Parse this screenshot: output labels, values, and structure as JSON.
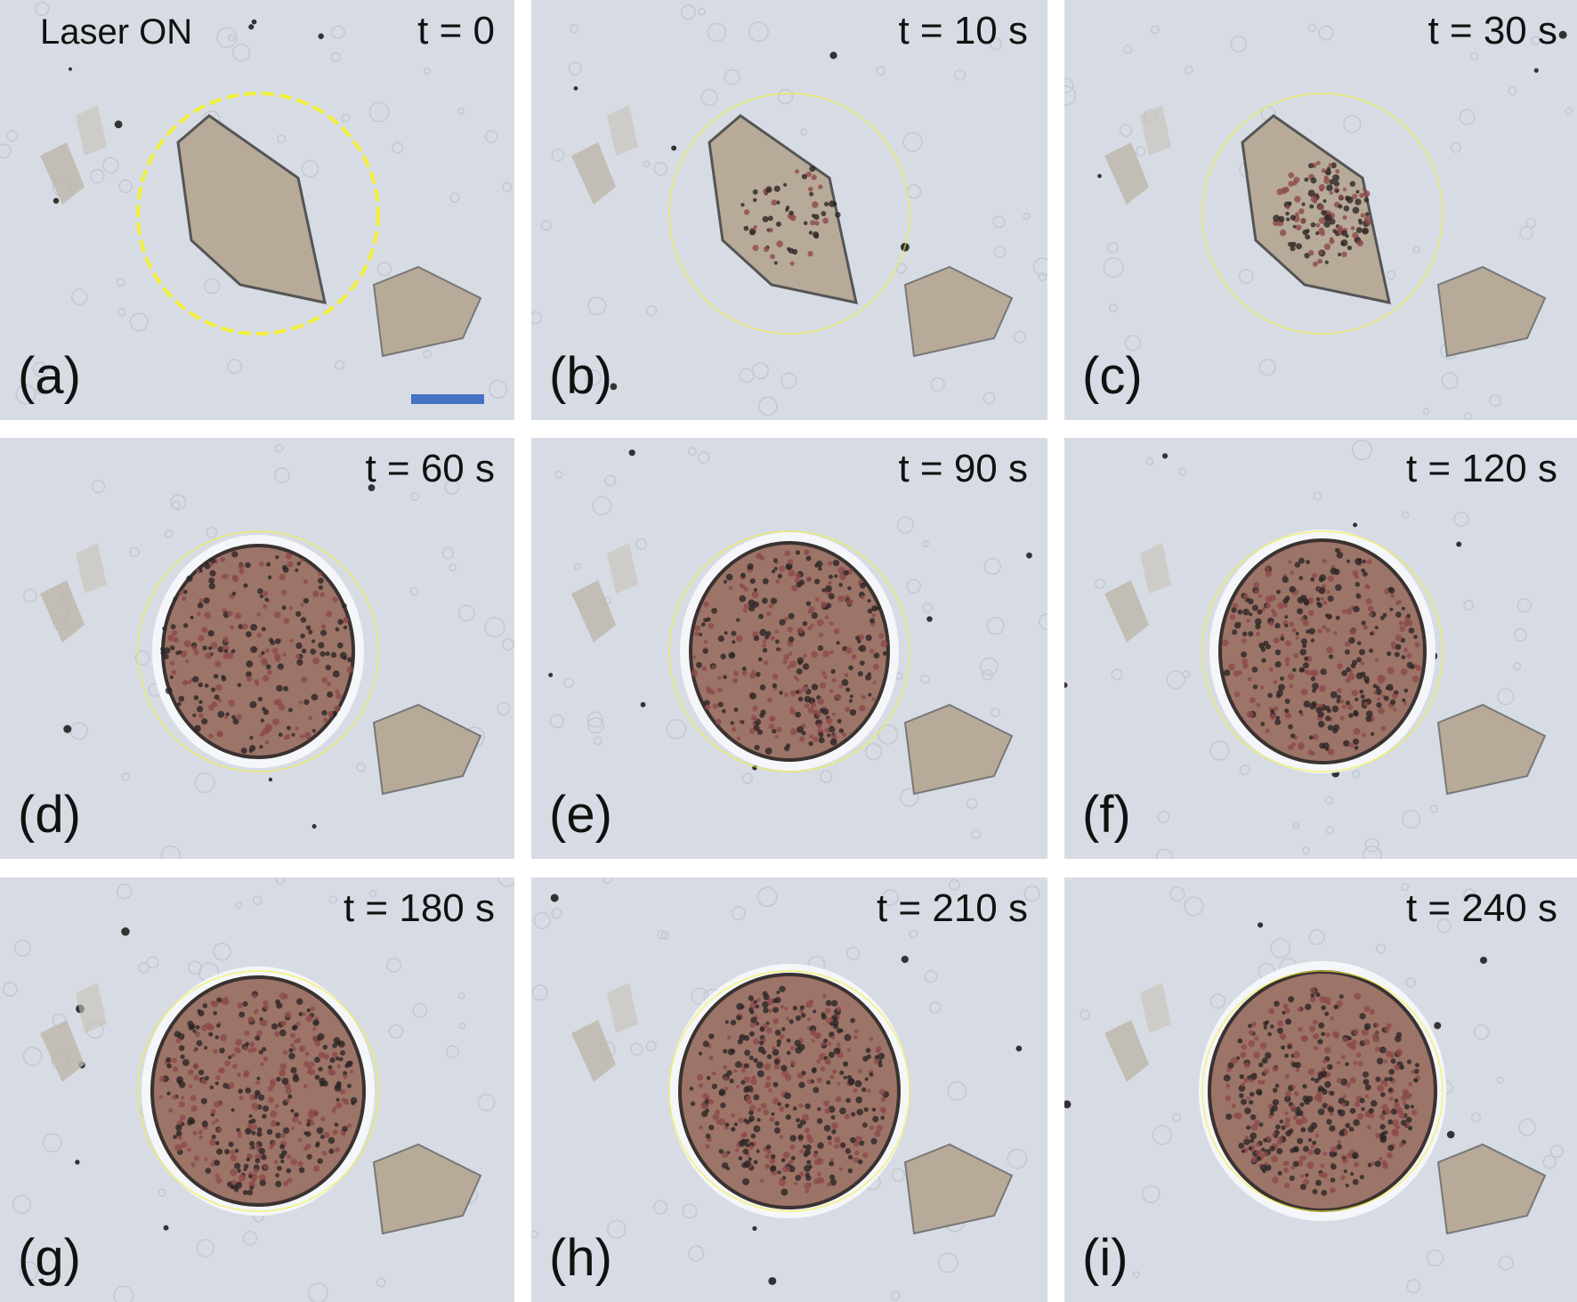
{
  "header": {
    "laser_label": "Laser ON"
  },
  "scale_bar": {
    "color": "#4472c4"
  },
  "colors": {
    "background": "#d7dce4",
    "crystal": "#b7aa98",
    "ring": "#f2ef3a",
    "speckle": "#8c4a4a"
  },
  "panels": [
    {
      "letter": "(a)",
      "time": "t = 0"
    },
    {
      "letter": "(b)",
      "time": "t = 10 s"
    },
    {
      "letter": "(c)",
      "time": "t = 30 s"
    },
    {
      "letter": "(d)",
      "time": "t = 60 s"
    },
    {
      "letter": "(e)",
      "time": "t = 90 s"
    },
    {
      "letter": "(f)",
      "time": "t = 120 s"
    },
    {
      "letter": "(g)",
      "time": "t = 180 s"
    },
    {
      "letter": "(h)",
      "time": "t = 210 s"
    },
    {
      "letter": "(i)",
      "time": "t = 240 s"
    }
  ]
}
